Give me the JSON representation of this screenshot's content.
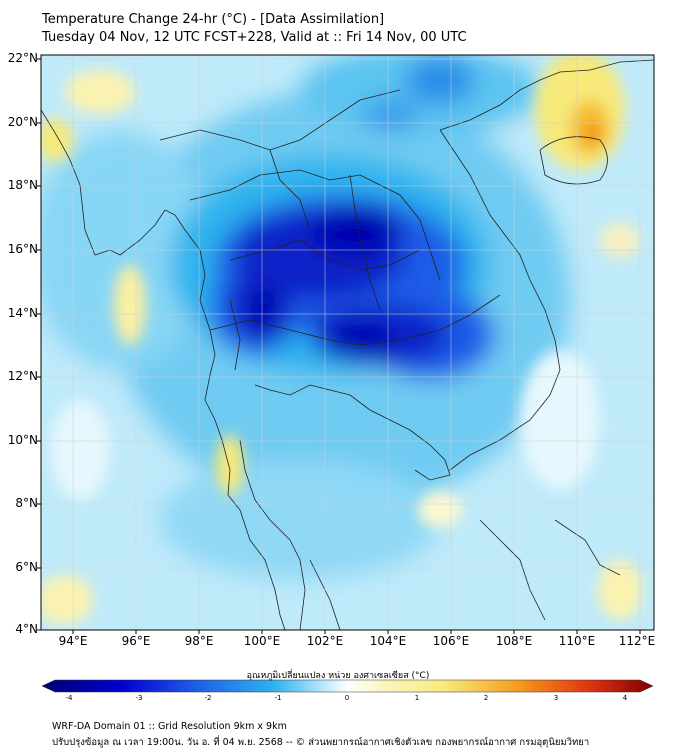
{
  "header": {
    "title_line1": "Temperature Change 24-hr (°C) - [Data Assimilation]",
    "title_line2": "Tuesday 04 Nov, 12 UTC FCST+228, Valid at :: Fri 14 Nov, 00 UTC"
  },
  "map": {
    "lat_labels": [
      "22°N",
      "20°N",
      "18°N",
      "16°N",
      "14°N",
      "12°N",
      "10°N",
      "8°N",
      "6°N",
      "4°N"
    ],
    "lon_labels": [
      "94°E",
      "96°E",
      "98°E",
      "100°E",
      "102°E",
      "104°E",
      "106°E",
      "108°E",
      "110°E",
      "112°E"
    ],
    "colors": {
      "deep_blue": "#0000b0",
      "mid_blue": "#1f5ce6",
      "light_blue": "#2fb3ee",
      "pale_blue": "#a8e3f8",
      "yellow": "#f7e97a",
      "orange": "#f59b1e"
    }
  },
  "colorbar": {
    "label": "อุณหภูมิเปลี่ยนแปลง หน่วย องศาเซลเซียส (°C)",
    "ticks": [
      "-4",
      "-3",
      "-2",
      "-1",
      "0",
      "1",
      "2",
      "3",
      "4"
    ]
  },
  "footer": {
    "line1": "WRF-DA Domain 01 :: Grid Resolution 9km x 9km",
    "line2": "ปรับปรุงข้อมูล ณ เวลา 19:00น. วัน อ. ที่ 04 พ.ย. 2568 -- © ส่วนพยากรณ์อากาศเชิงตัวเลข กองพยากรณ์อากาศ กรมอุตุนิยมวิทยา"
  }
}
